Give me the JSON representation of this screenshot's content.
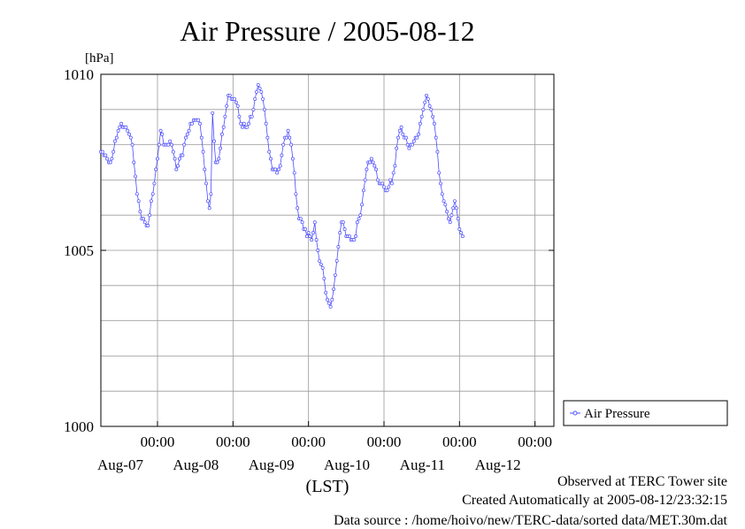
{
  "chart_data": {
    "type": "line",
    "title": "Air Pressure / 2005-08-12",
    "ylabel": "[hPa]",
    "xlabel": "(LST)",
    "ylim": [
      1000,
      1010
    ],
    "y_ticks": [
      "1000",
      "1005",
      "1010"
    ],
    "x_ticks": [
      {
        "time": "00:00",
        "date": "Aug-07"
      },
      {
        "time": "00:00",
        "date": "Aug-08"
      },
      {
        "time": "00:00",
        "date": "Aug-09"
      },
      {
        "time": "00:00",
        "date": "Aug-10"
      },
      {
        "time": "00:00",
        "date": "Aug-11"
      },
      {
        "time": "00:00",
        "date": "Aug-12"
      }
    ],
    "x_range_hours": [
      -18,
      126
    ],
    "grid": true,
    "legend_position": "right",
    "color": "#4b4bff",
    "series": [
      {
        "name": "Air Pressure",
        "step_hours": 0.5,
        "start_hour": -18,
        "values": [
          1007.8,
          1007.8,
          1007.7,
          1007.7,
          1007.6,
          1007.5,
          1007.5,
          1007.6,
          1007.8,
          1008.1,
          1008.2,
          1008.4,
          1008.5,
          1008.6,
          1008.5,
          1008.5,
          1008.5,
          1008.4,
          1008.3,
          1008.2,
          1008.0,
          1007.5,
          1007.1,
          1006.6,
          1006.4,
          1006.1,
          1005.9,
          1005.9,
          1005.8,
          1005.7,
          1005.7,
          1006.0,
          1006.4,
          1006.6,
          1006.9,
          1007.3,
          1007.6,
          1008.0,
          1008.4,
          1008.3,
          1008.0,
          1008.0,
          1008.0,
          1008.0,
          1008.1,
          1008.0,
          1007.8,
          1007.6,
          1007.3,
          1007.4,
          1007.6,
          1007.7,
          1007.7,
          1008.0,
          1008.2,
          1008.3,
          1008.4,
          1008.6,
          1008.6,
          1008.7,
          1008.7,
          1008.7,
          1008.7,
          1008.6,
          1008.2,
          1007.8,
          1007.3,
          1006.9,
          1006.4,
          1006.2,
          1006.6,
          1008.9,
          1008.1,
          1007.5,
          1007.5,
          1007.6,
          1007.9,
          1008.3,
          1008.5,
          1008.8,
          1009.1,
          1009.4,
          1009.4,
          1009.3,
          1009.3,
          1009.3,
          1009.2,
          1009.1,
          1008.8,
          1008.6,
          1008.5,
          1008.6,
          1008.5,
          1008.5,
          1008.6,
          1008.8,
          1008.8,
          1009.0,
          1009.3,
          1009.5,
          1009.7,
          1009.6,
          1009.5,
          1009.3,
          1009.0,
          1008.6,
          1008.2,
          1007.8,
          1007.6,
          1007.3,
          1007.3,
          1007.3,
          1007.2,
          1007.3,
          1007.4,
          1007.7,
          1008.0,
          1008.2,
          1008.2,
          1008.4,
          1008.2,
          1008.0,
          1007.6,
          1007.2,
          1006.6,
          1006.2,
          1005.9,
          1005.9,
          1005.8,
          1005.6,
          1005.6,
          1005.4,
          1005.5,
          1005.4,
          1005.3,
          1005.5,
          1005.8,
          1005.3,
          1005.0,
          1004.7,
          1004.6,
          1004.5,
          1004.2,
          1003.8,
          1003.6,
          1003.5,
          1003.4,
          1003.6,
          1003.9,
          1004.3,
          1004.7,
          1005.1,
          1005.5,
          1005.8,
          1005.8,
          1005.6,
          1005.4,
          1005.4,
          1005.4,
          1005.3,
          1005.3,
          1005.3,
          1005.4,
          1005.8,
          1005.9,
          1006.0,
          1006.3,
          1006.7,
          1007.0,
          1007.3,
          1007.5,
          1007.5,
          1007.6,
          1007.5,
          1007.4,
          1007.3,
          1007.0,
          1006.9,
          1006.9,
          1006.9,
          1006.8,
          1006.7,
          1006.7,
          1006.8,
          1007.0,
          1006.9,
          1007.2,
          1007.4,
          1007.9,
          1008.2,
          1008.4,
          1008.5,
          1008.3,
          1008.2,
          1008.2,
          1008.0,
          1007.9,
          1008.0,
          1008.0,
          1008.1,
          1008.2,
          1008.2,
          1008.3,
          1008.6,
          1008.8,
          1009.0,
          1009.2,
          1009.4,
          1009.3,
          1009.1,
          1009.0,
          1008.8,
          1008.6,
          1008.2,
          1007.8,
          1007.2,
          1006.9,
          1006.6,
          1006.4,
          1006.3,
          1006.1,
          1005.9,
          1005.8,
          1006.0,
          1006.2,
          1006.4,
          1006.2,
          1005.9,
          1005.6,
          1005.5,
          1005.4
        ]
      }
    ]
  },
  "footer": {
    "line1": "Observed at TERC Tower site",
    "line2": "Created Automatically at 2005-08-12/23:32:15",
    "line3": "Data source : /home/hoivo/new/TERC-data/sorted  data/MET.30m.dat"
  }
}
